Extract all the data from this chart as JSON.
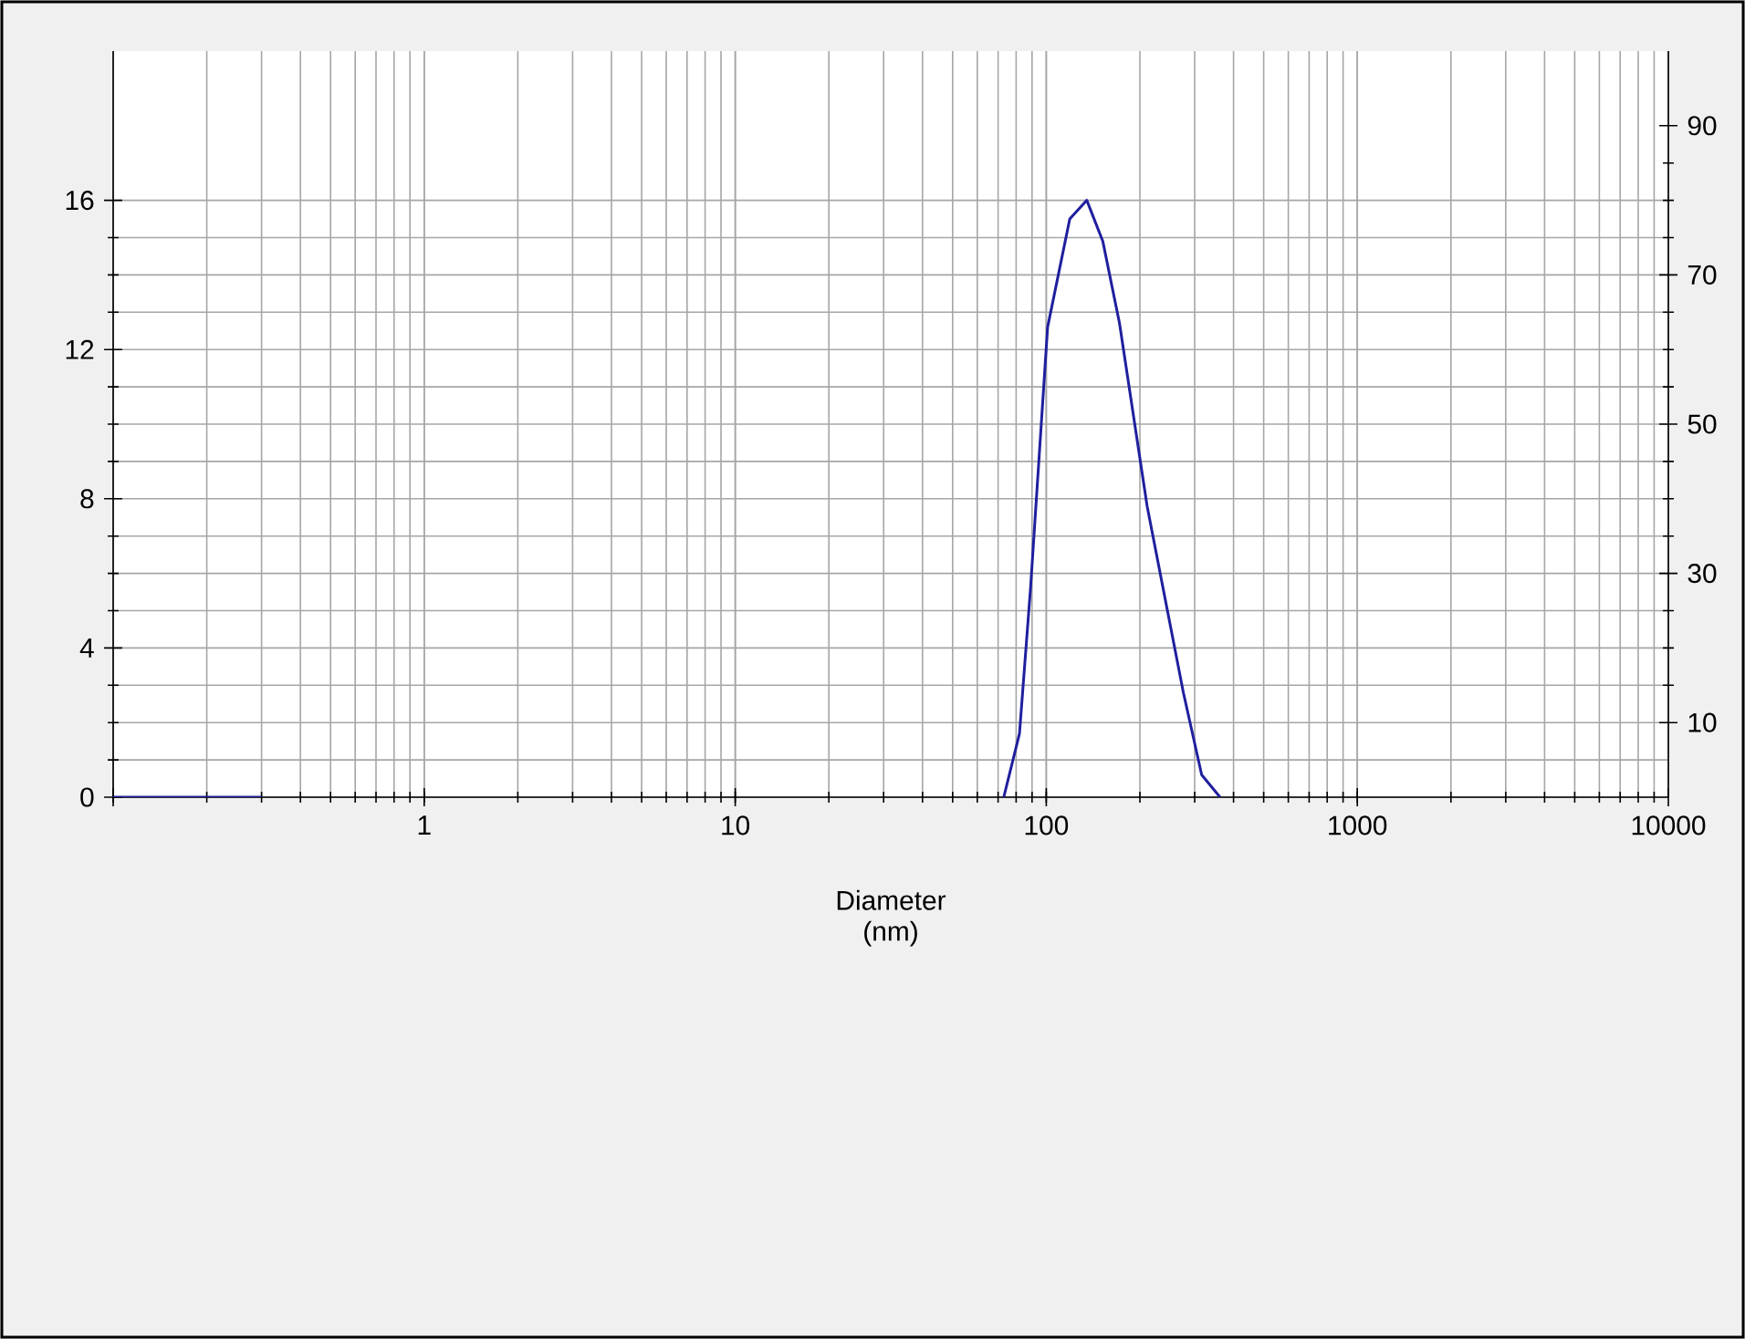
{
  "chart_data": {
    "type": "line",
    "xlabel": "Diameter (nm)",
    "log": "x",
    "grid": true,
    "xlim": [
      0.1,
      10000
    ],
    "ylim": [
      0,
      20
    ],
    "y2lim": [
      0,
      100
    ],
    "xticks": [
      {
        "value": 0.1,
        "label": null
      },
      1,
      10,
      100,
      1000,
      10000
    ],
    "yticks": [
      0,
      4,
      8,
      12,
      16
    ],
    "y2ticks": [
      10,
      30,
      50,
      70,
      90
    ],
    "series": [
      {
        "color": "#1f1f9e",
        "x": [
          0.1,
          0.2,
          0.3,
          0.5,
          73,
          82,
          89,
          101,
          119,
          135,
          152,
          172,
          211,
          276,
          316,
          362
        ],
        "values": [
          0,
          0,
          0,
          null,
          0,
          1.7,
          5.6,
          12.6,
          15.5,
          16.0,
          14.9,
          12.7,
          7.8,
          2.8,
          0.6,
          0
        ]
      }
    ]
  }
}
